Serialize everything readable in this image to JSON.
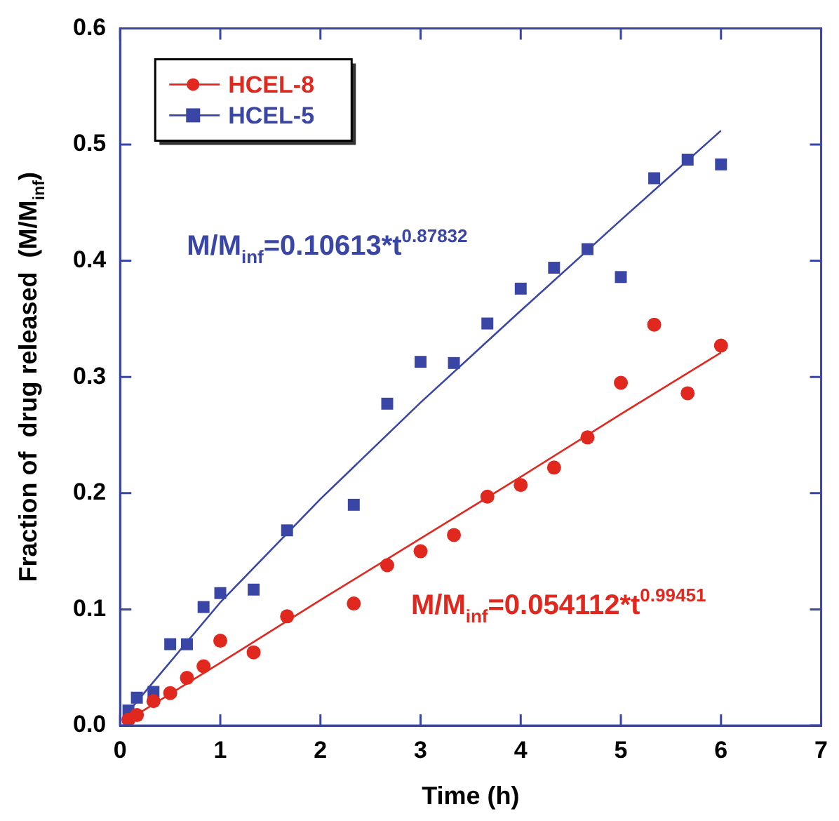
{
  "chart_data": {
    "type": "scatter",
    "xlabel": "Time (h)",
    "ylabel": "Fraction of  drug released  (M/M$_{inf}$)",
    "xlim": [
      0,
      7
    ],
    "xticks": [
      0,
      1,
      2,
      3,
      4,
      5,
      6,
      7
    ],
    "ylim": [
      0,
      0.6
    ],
    "yticks": [
      {
        "value": 0,
        "label": "0.0"
      },
      {
        "value": 0.1,
        "label": "0.1"
      },
      {
        "value": 0.2,
        "label": "0.2"
      },
      {
        "value": 0.3,
        "label": "0.3"
      },
      {
        "value": 0.4,
        "label": "0.4"
      },
      {
        "value": 0.5,
        "label": "0.5"
      },
      {
        "value": 0.6,
        "label": "0.6"
      }
    ],
    "grid": false,
    "legend": "top left",
    "series": [
      {
        "name": "HCEL-8",
        "marker": "circle",
        "color": "#e0281e",
        "x": [
          0.083,
          0.167,
          0.333,
          0.5,
          0.667,
          0.833,
          1,
          1.333,
          1.667,
          2.333,
          2.667,
          3,
          3.333,
          3.667,
          4,
          4.333,
          4.667,
          5,
          5.333,
          5.667,
          6
        ],
        "values": [
          0.005,
          0.009,
          0.021,
          0.028,
          0.041,
          0.051,
          0.073,
          0.063,
          0.094,
          0.105,
          0.138,
          0.15,
          0.164,
          0.197,
          0.207,
          0.222,
          0.248,
          0.295,
          0.345,
          0.286,
          0.327
        ]
      },
      {
        "name": "HCEL-5",
        "marker": "square",
        "color": "#3a46a6",
        "x": [
          0.083,
          0.167,
          0.333,
          0.5,
          0.667,
          0.833,
          1,
          1.333,
          1.667,
          2.333,
          2.667,
          3,
          3.333,
          3.667,
          4,
          4.333,
          4.667,
          5,
          5.333,
          5.667,
          6
        ],
        "values": [
          0.013,
          0.024,
          0.029,
          0.07,
          0.07,
          0.102,
          0.114,
          0.117,
          0.168,
          0.19,
          0.277,
          0.313,
          0.312,
          0.346,
          0.376,
          0.394,
          0.41,
          0.386,
          0.471,
          0.487,
          0.483
        ]
      },
      {
        "type": "line",
        "marker": "none",
        "color": "#e0281e",
        "x": [
          0.083,
          1,
          2,
          3,
          4,
          5,
          6
        ],
        "values": [
          0.005,
          0.054,
          0.108,
          0.161,
          0.214,
          0.268,
          0.321
        ]
      },
      {
        "type": "line",
        "marker": "none",
        "color": "#3a46a6",
        "x": [
          0.083,
          1,
          2,
          3,
          4,
          5,
          6
        ],
        "values": [
          0.012,
          0.106,
          0.195,
          0.278,
          0.357,
          0.435,
          0.512
        ]
      }
    ],
    "annotations": [
      "M/M$_{inf}$=0.054112*t$^{0.99451}$",
      "M/M$_{inf}$=0.10613*t$^{0.87832}$"
    ]
  }
}
